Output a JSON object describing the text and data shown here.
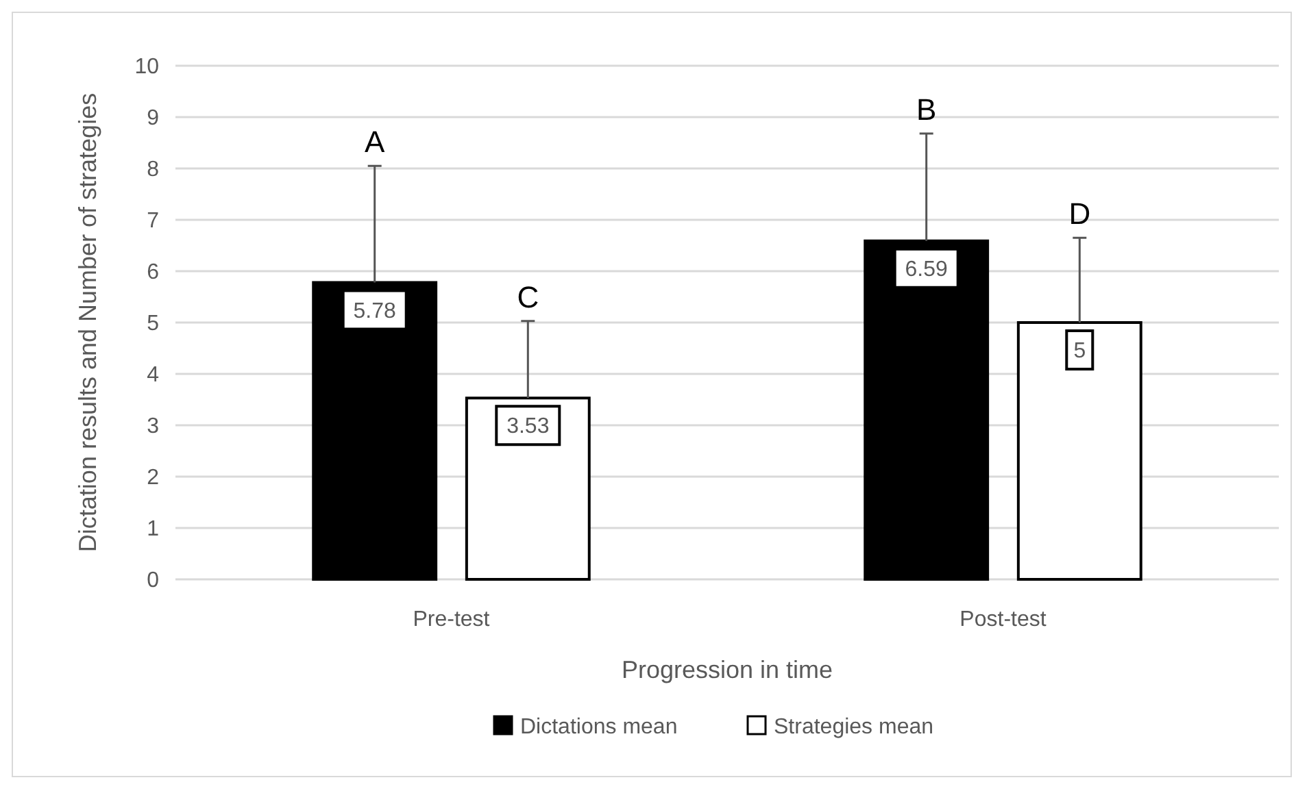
{
  "chart_data": {
    "type": "bar",
    "xlabel": "Progression in time",
    "ylabel": "Dictation results and Number of strategies",
    "categories": [
      "Pre-test",
      "Post-test"
    ],
    "series": [
      {
        "name": "Dictations mean",
        "color": "#000000",
        "values": [
          5.78,
          6.59
        ],
        "errors": [
          [
            5.78,
            8.05
          ],
          [
            6.59,
            8.68
          ]
        ]
      },
      {
        "name": "Strategies mean",
        "color": "#ffffff",
        "values": [
          3.53,
          5
        ],
        "errors": [
          [
            3.53,
            5.03
          ],
          [
            5,
            6.65
          ]
        ]
      }
    ],
    "ylim": [
      0,
      10
    ],
    "yticks": [
      0,
      1,
      2,
      3,
      4,
      5,
      6,
      7,
      8,
      9,
      10
    ],
    "grid": "y",
    "legend": "bottom",
    "data_labels": true,
    "annotations": [
      "A",
      "C",
      "B",
      "D"
    ]
  }
}
